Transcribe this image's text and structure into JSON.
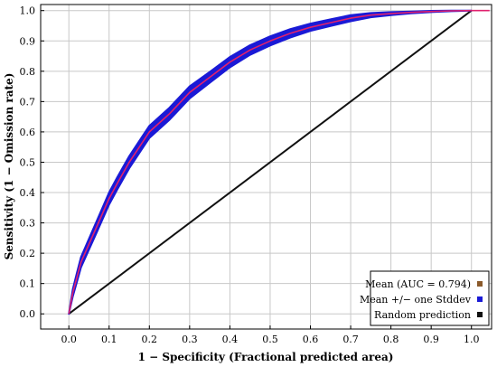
{
  "chart_data": {
    "type": "line",
    "xlabel": "1 − Specificity (Fractional predicted area)",
    "ylabel": "Sensitivity (1 − Omission rate)",
    "xlim": [
      0,
      1
    ],
    "ylim": [
      0,
      1
    ],
    "x_ticks": [
      "0.0",
      "0.1",
      "0.2",
      "0.3",
      "0.4",
      "0.5",
      "0.6",
      "0.7",
      "0.8",
      "0.9",
      "1.0"
    ],
    "y_ticks": [
      "0.0",
      "0.1",
      "0.2",
      "0.3",
      "0.4",
      "0.5",
      "0.6",
      "0.7",
      "0.8",
      "0.9",
      "1.0"
    ],
    "grid": true,
    "legend_position": "bottom-right",
    "colors": {
      "mean": "#e0216e",
      "stddev": "#1a1ad6",
      "random": "#111111",
      "mean_legend_marker": "#8b5a2b",
      "grid": "#c8c8c8"
    },
    "series": [
      {
        "name": "Mean (AUC = 0.794)",
        "x": [
          0.0,
          0.01,
          0.02,
          0.03,
          0.05,
          0.07,
          0.1,
          0.12,
          0.15,
          0.18,
          0.2,
          0.25,
          0.3,
          0.35,
          0.4,
          0.45,
          0.5,
          0.55,
          0.6,
          0.65,
          0.7,
          0.75,
          0.8,
          0.85,
          0.9,
          0.95,
          1.0
        ],
        "y": [
          0.0,
          0.07,
          0.12,
          0.17,
          0.23,
          0.29,
          0.38,
          0.43,
          0.5,
          0.56,
          0.6,
          0.66,
          0.73,
          0.78,
          0.83,
          0.87,
          0.9,
          0.925,
          0.945,
          0.96,
          0.975,
          0.985,
          0.99,
          0.994,
          0.997,
          0.999,
          1.0
        ]
      },
      {
        "name": "Mean +/− one Stddev",
        "band_halfwidth": [
          0.0,
          0.012,
          0.015,
          0.017,
          0.018,
          0.019,
          0.02,
          0.02,
          0.02,
          0.02,
          0.02,
          0.02,
          0.02,
          0.018,
          0.017,
          0.016,
          0.015,
          0.014,
          0.012,
          0.011,
          0.01,
          0.007,
          0.005,
          0.003,
          0.002,
          0.001,
          0.0
        ]
      },
      {
        "name": "Random prediction",
        "x": [
          0,
          1
        ],
        "y": [
          0,
          1
        ]
      }
    ]
  }
}
